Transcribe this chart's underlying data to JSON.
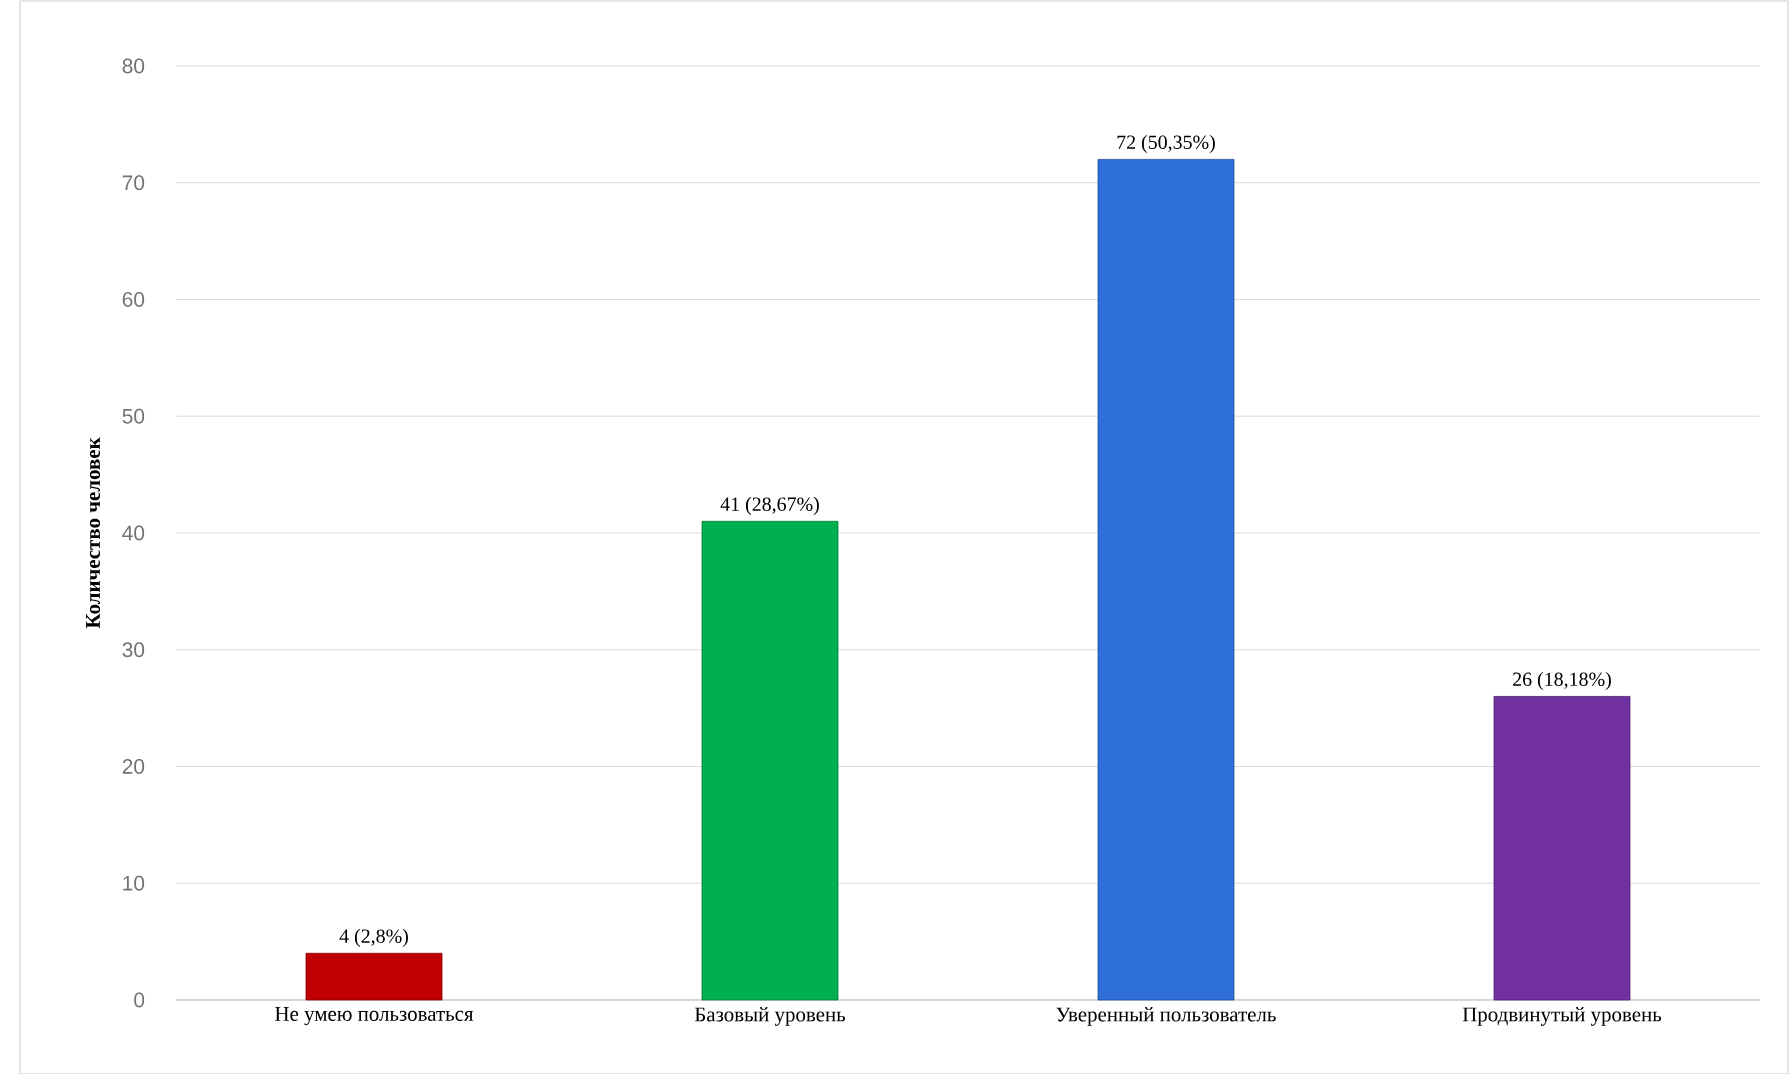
{
  "chart_data": {
    "type": "bar",
    "ylabel": "Количество человек",
    "categories": [
      "Не умею пользоваться",
      "Базовый уровень",
      "Уверенный пользователь",
      "Продвинутый уровень"
    ],
    "values": [
      4,
      41,
      72,
      26
    ],
    "colors": [
      "#c00000",
      "#00b050",
      "#2e6fd8",
      "#7030a0"
    ],
    "value_labels": [
      "4 (2,8%)",
      "41 (28,67%)",
      "72 (50,35%)",
      "26 (18,18%)"
    ],
    "ylim": [
      0,
      80
    ],
    "yticks": [
      0,
      10,
      20,
      30,
      40,
      50,
      60,
      70,
      80
    ],
    "grid": "y"
  }
}
